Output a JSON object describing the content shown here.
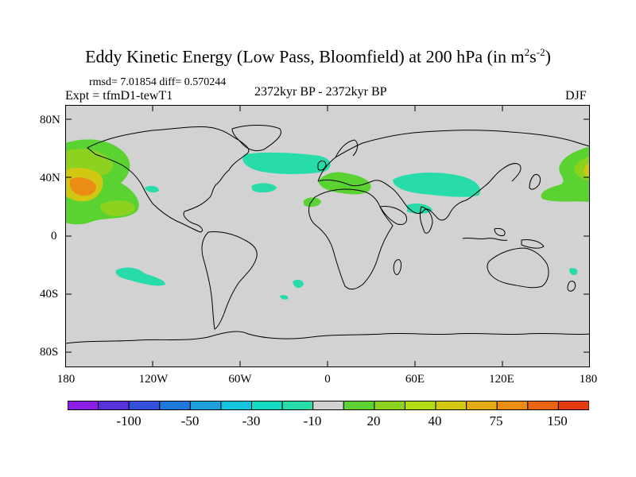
{
  "title": {
    "main": "Eddy Kinetic Energy (Low Pass, Bloomfield) at 200 hPa (in m",
    "sup1": "2",
    "mid": "s",
    "sup2": "-2",
    "close": ")"
  },
  "stats": "rmsd= 7.01854 diff= 0.570244",
  "experiment": "Expt = tfmD1-tewT1",
  "period": "2372kyr BP - 2372kyr BP",
  "season": "DJF",
  "axes": {
    "y_labels": [
      "80N",
      "40N",
      "0",
      "40S",
      "80S"
    ],
    "x_labels": [
      "180",
      "120W",
      "60W",
      "0",
      "60E",
      "120E",
      "180"
    ]
  },
  "colorbar": {
    "labels": [
      "-100",
      "-50",
      "-30",
      "-10",
      "20",
      "40",
      "75",
      "150"
    ],
    "colors": [
      "#8a1ee6",
      "#5a32dc",
      "#3250dc",
      "#1e78dc",
      "#1ea0dc",
      "#14c3dc",
      "#14dcc3",
      "#28dcaa",
      "#d2d2d2",
      "#5ad232",
      "#8cd21e",
      "#b4dc14",
      "#d2c814",
      "#e6aa14",
      "#eb8c14",
      "#eb6414",
      "#e63c14"
    ]
  },
  "map": {
    "background": "#d2d2d2",
    "projection": "cylindrical equidistant",
    "lon_range": [
      -180,
      180
    ],
    "lat_range": [
      -90,
      90
    ]
  }
}
